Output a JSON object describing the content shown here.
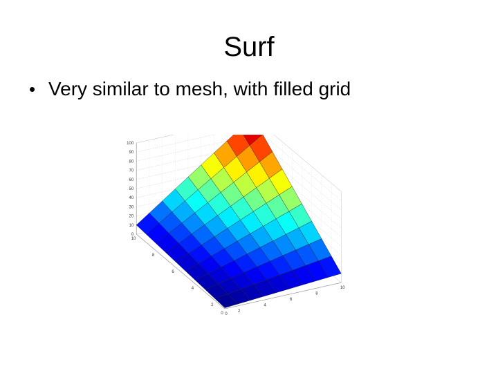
{
  "slide": {
    "title": "Surf",
    "bullets": [
      "Very similar to mesh, with filled grid"
    ]
  },
  "chart_data": {
    "type": "surface",
    "x": [
      1,
      2,
      3,
      4,
      5,
      6,
      7,
      8,
      9,
      10
    ],
    "y": [
      1,
      2,
      3,
      4,
      5,
      6,
      7,
      8,
      9,
      10
    ],
    "z_formula": "z = x * y",
    "zlim": [
      0,
      100
    ],
    "z_ticks": [
      "0",
      "10",
      "20",
      "30",
      "40",
      "50",
      "60",
      "70",
      "80",
      "90",
      "100"
    ],
    "x_ticks": [
      "0",
      "2",
      "4",
      "6",
      "8",
      "10"
    ],
    "y_ticks": [
      "0",
      "2",
      "4",
      "6",
      "8",
      "10"
    ],
    "colormap": "jet",
    "grid": true
  }
}
